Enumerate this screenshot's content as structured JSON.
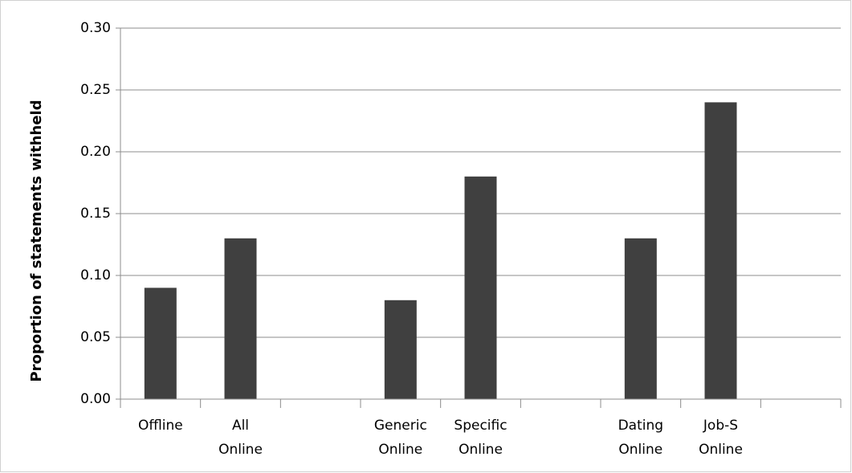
{
  "chart_data": {
    "type": "bar",
    "y_label": "Proportion of statements withheld",
    "categories": [
      "Offline",
      "All Online",
      null,
      "Generic Online",
      "Specific Online",
      null,
      "Dating Online",
      "Job-S Online",
      null
    ],
    "values": [
      0.09,
      0.13,
      null,
      0.08,
      0.18,
      null,
      0.13,
      0.24,
      null
    ],
    "color": "#404040",
    "ylim": [
      0,
      0.3
    ],
    "yticks": [
      {
        "value": 0,
        "label": "0.00"
      },
      {
        "value": 0.05,
        "label": "0.05"
      },
      {
        "value": 0.1,
        "label": "0.10"
      },
      {
        "value": 0.15,
        "label": "0.15"
      },
      {
        "value": 0.2,
        "label": "0.20"
      },
      {
        "value": 0.25,
        "label": "0.25"
      },
      {
        "value": 0.3,
        "label": "0.30"
      }
    ],
    "grid": true
  }
}
